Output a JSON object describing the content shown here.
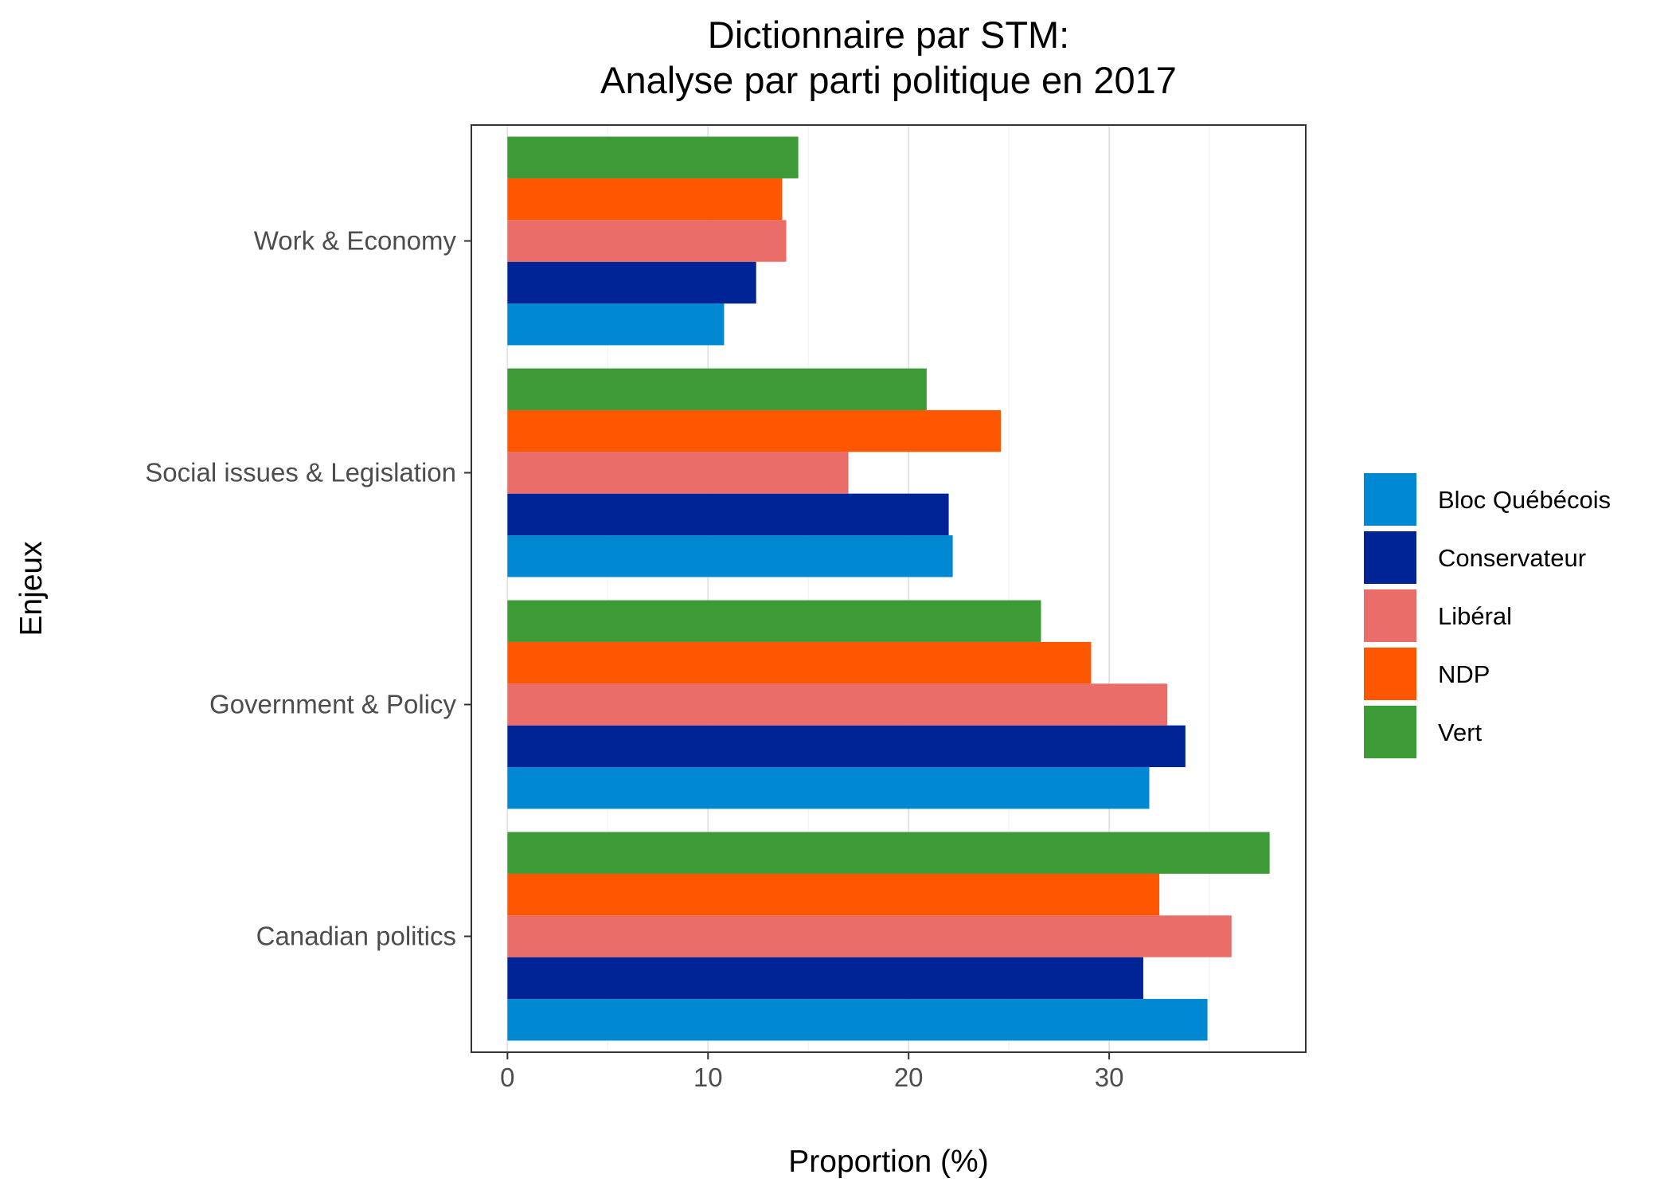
{
  "chart_data": {
    "type": "bar",
    "orientation": "horizontal",
    "title": "Dictionnaire par STM:",
    "subtitle": "Analyse par parti politique en 2017",
    "xlabel": "Proportion (%)",
    "ylabel": "Enjeux",
    "xlim": [
      -1.8,
      39.8
    ],
    "xticks": [
      0,
      10,
      20,
      30
    ],
    "grid": true,
    "legend_position": "right",
    "categories": [
      "Work & Economy",
      "Social issues & Legislation",
      "Government & Policy",
      "Canadian politics"
    ],
    "series": [
      {
        "name": "Bloc Québécois",
        "color": "#0088D2",
        "values": [
          10.8,
          22.2,
          32.0,
          34.9
        ]
      },
      {
        "name": "Conservateur",
        "color": "#002395",
        "values": [
          12.4,
          22.0,
          33.8,
          31.7
        ]
      },
      {
        "name": "Libéral",
        "color": "#EA6D6A",
        "values": [
          13.9,
          17.0,
          32.9,
          36.1
        ]
      },
      {
        "name": "NDP",
        "color": "#FF5600",
        "values": [
          13.7,
          24.6,
          29.1,
          32.5
        ]
      },
      {
        "name": "Vert",
        "color": "#3D9B35",
        "values": [
          14.5,
          20.9,
          26.6,
          38.0
        ]
      }
    ]
  }
}
